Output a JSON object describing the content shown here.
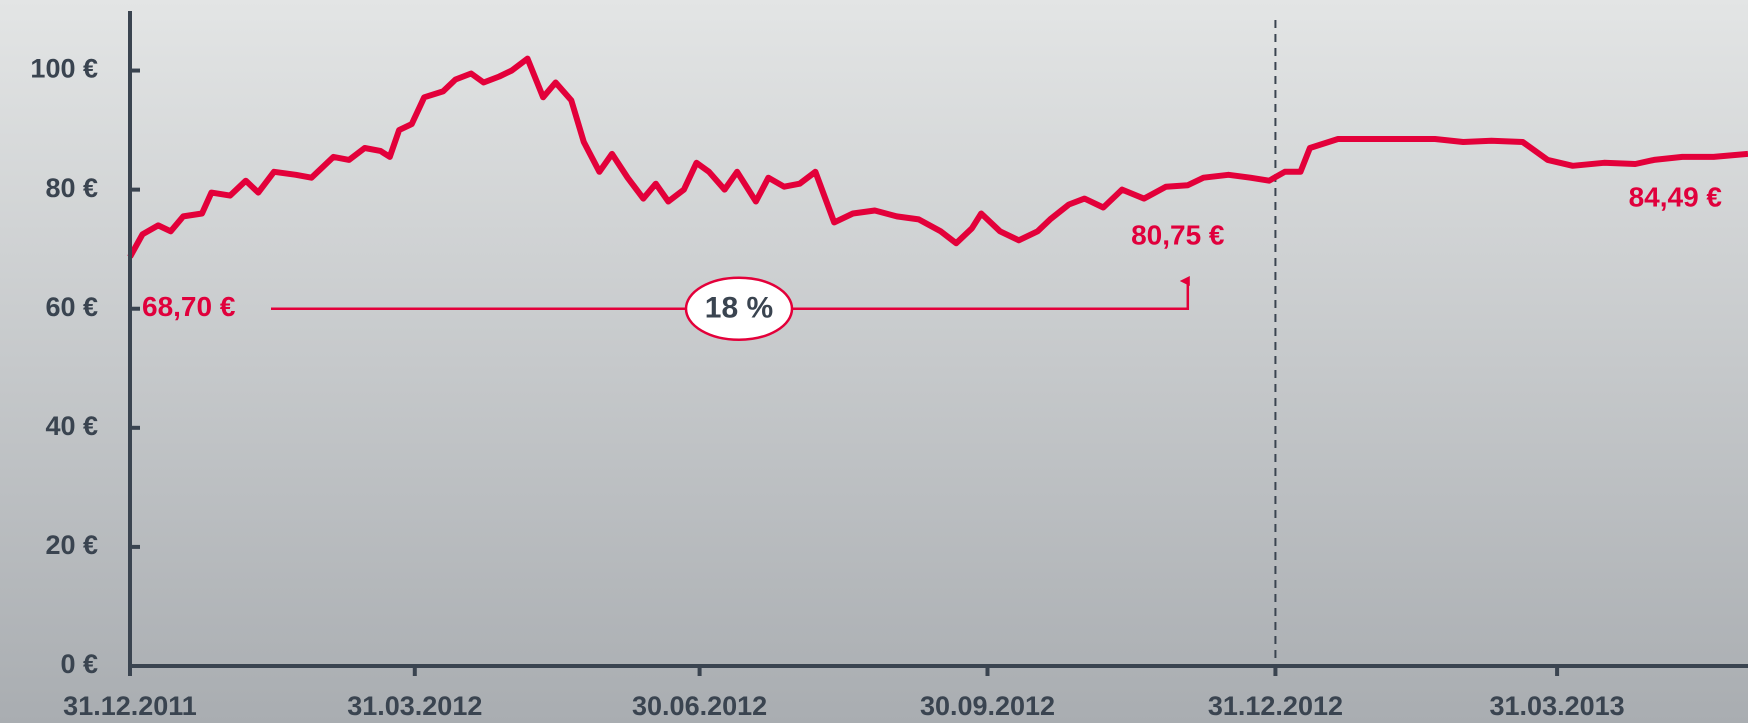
{
  "chart_data": {
    "type": "line",
    "xlim": [
      "2011-12-31",
      "2013-05-31"
    ],
    "ylim": [
      0,
      110
    ],
    "yticks": [
      {
        "value": 0,
        "label": "0 €"
      },
      {
        "value": 20,
        "label": "20 €"
      },
      {
        "value": 40,
        "label": "40 €"
      },
      {
        "value": 60,
        "label": "60 €"
      },
      {
        "value": 80,
        "label": "80 €"
      },
      {
        "value": 100,
        "label": "100 €"
      }
    ],
    "xticks": [
      {
        "value": "2011-12-31",
        "label": "31.12.2011"
      },
      {
        "value": "2012-03-31",
        "label": "31.03.2012"
      },
      {
        "value": "2012-06-30",
        "label": "30.06.2012"
      },
      {
        "value": "2012-09-30",
        "label": "30.09.2012"
      },
      {
        "value": "2012-12-31",
        "label": "31.12.2012"
      },
      {
        "value": "2013-03-31",
        "label": "31.03.2013"
      }
    ],
    "divider": "2012-12-31",
    "color": "#e3003a",
    "x": [
      "2011-12-31",
      "2012-01-04",
      "2012-01-09",
      "2012-01-13",
      "2012-01-17",
      "2012-01-23",
      "2012-01-26",
      "2012-02-01",
      "2012-02-06",
      "2012-02-10",
      "2012-02-15",
      "2012-02-22",
      "2012-02-27",
      "2012-03-05",
      "2012-03-10",
      "2012-03-15",
      "2012-03-20",
      "2012-03-23",
      "2012-03-26",
      "2012-03-30",
      "2012-04-03",
      "2012-04-09",
      "2012-04-13",
      "2012-04-18",
      "2012-04-22",
      "2012-04-27",
      "2012-05-01",
      "2012-05-06",
      "2012-05-11",
      "2012-05-15",
      "2012-05-20",
      "2012-05-24",
      "2012-05-29",
      "2012-06-02",
      "2012-06-07",
      "2012-06-12",
      "2012-06-16",
      "2012-06-20",
      "2012-06-25",
      "2012-06-29",
      "2012-07-03",
      "2012-07-08",
      "2012-07-12",
      "2012-07-18",
      "2012-07-22",
      "2012-07-27",
      "2012-08-01",
      "2012-08-06",
      "2012-08-12",
      "2012-08-18",
      "2012-08-25",
      "2012-09-01",
      "2012-09-08",
      "2012-09-15",
      "2012-09-20",
      "2012-09-25",
      "2012-09-28",
      "2012-10-04",
      "2012-10-10",
      "2012-10-16",
      "2012-10-20",
      "2012-10-26",
      "2012-10-31",
      "2012-11-06",
      "2012-11-12",
      "2012-11-19",
      "2012-11-26",
      "2012-12-03",
      "2012-12-08",
      "2012-12-16",
      "2012-12-23",
      "2012-12-29",
      "2013-01-03",
      "2013-01-08",
      "2013-01-11",
      "2013-01-20",
      "2013-02-01",
      "2013-02-10",
      "2013-02-20",
      "2013-03-01",
      "2013-03-10",
      "2013-03-20",
      "2013-03-28",
      "2013-04-05",
      "2013-04-15",
      "2013-04-25",
      "2013-05-01",
      "2013-05-10",
      "2013-05-20",
      "2013-05-31"
    ],
    "values": [
      68.7,
      72.5,
      74,
      73,
      75.5,
      76,
      79.5,
      79,
      81.5,
      79.5,
      83,
      82.5,
      82,
      85.5,
      85,
      87,
      86.5,
      85.5,
      90,
      91,
      95.5,
      96.5,
      98.5,
      99.5,
      98,
      99,
      100,
      102,
      95.5,
      98,
      95,
      88,
      83,
      86,
      82,
      78.5,
      81,
      78,
      80,
      84.5,
      83,
      80,
      83,
      78,
      82,
      80.5,
      81,
      83,
      74.5,
      76,
      76.5,
      75.5,
      75,
      73,
      71,
      73.5,
      76,
      73,
      71.5,
      73,
      75,
      77.5,
      78.5,
      77,
      80,
      78.5,
      80.5,
      80.75,
      82,
      82.5,
      82,
      81.5,
      83,
      83,
      87,
      88.5,
      88.5,
      88.5,
      88.5,
      88,
      88.2,
      88,
      85,
      84,
      84.5,
      84.3,
      85,
      85.5,
      85.5,
      86
    ],
    "arrow": {
      "from": "2011-12-31",
      "to": "2012-12-03",
      "label": "18 %"
    },
    "annotations": [
      "68,70 €",
      "80,75 €",
      "84,49 €"
    ]
  }
}
